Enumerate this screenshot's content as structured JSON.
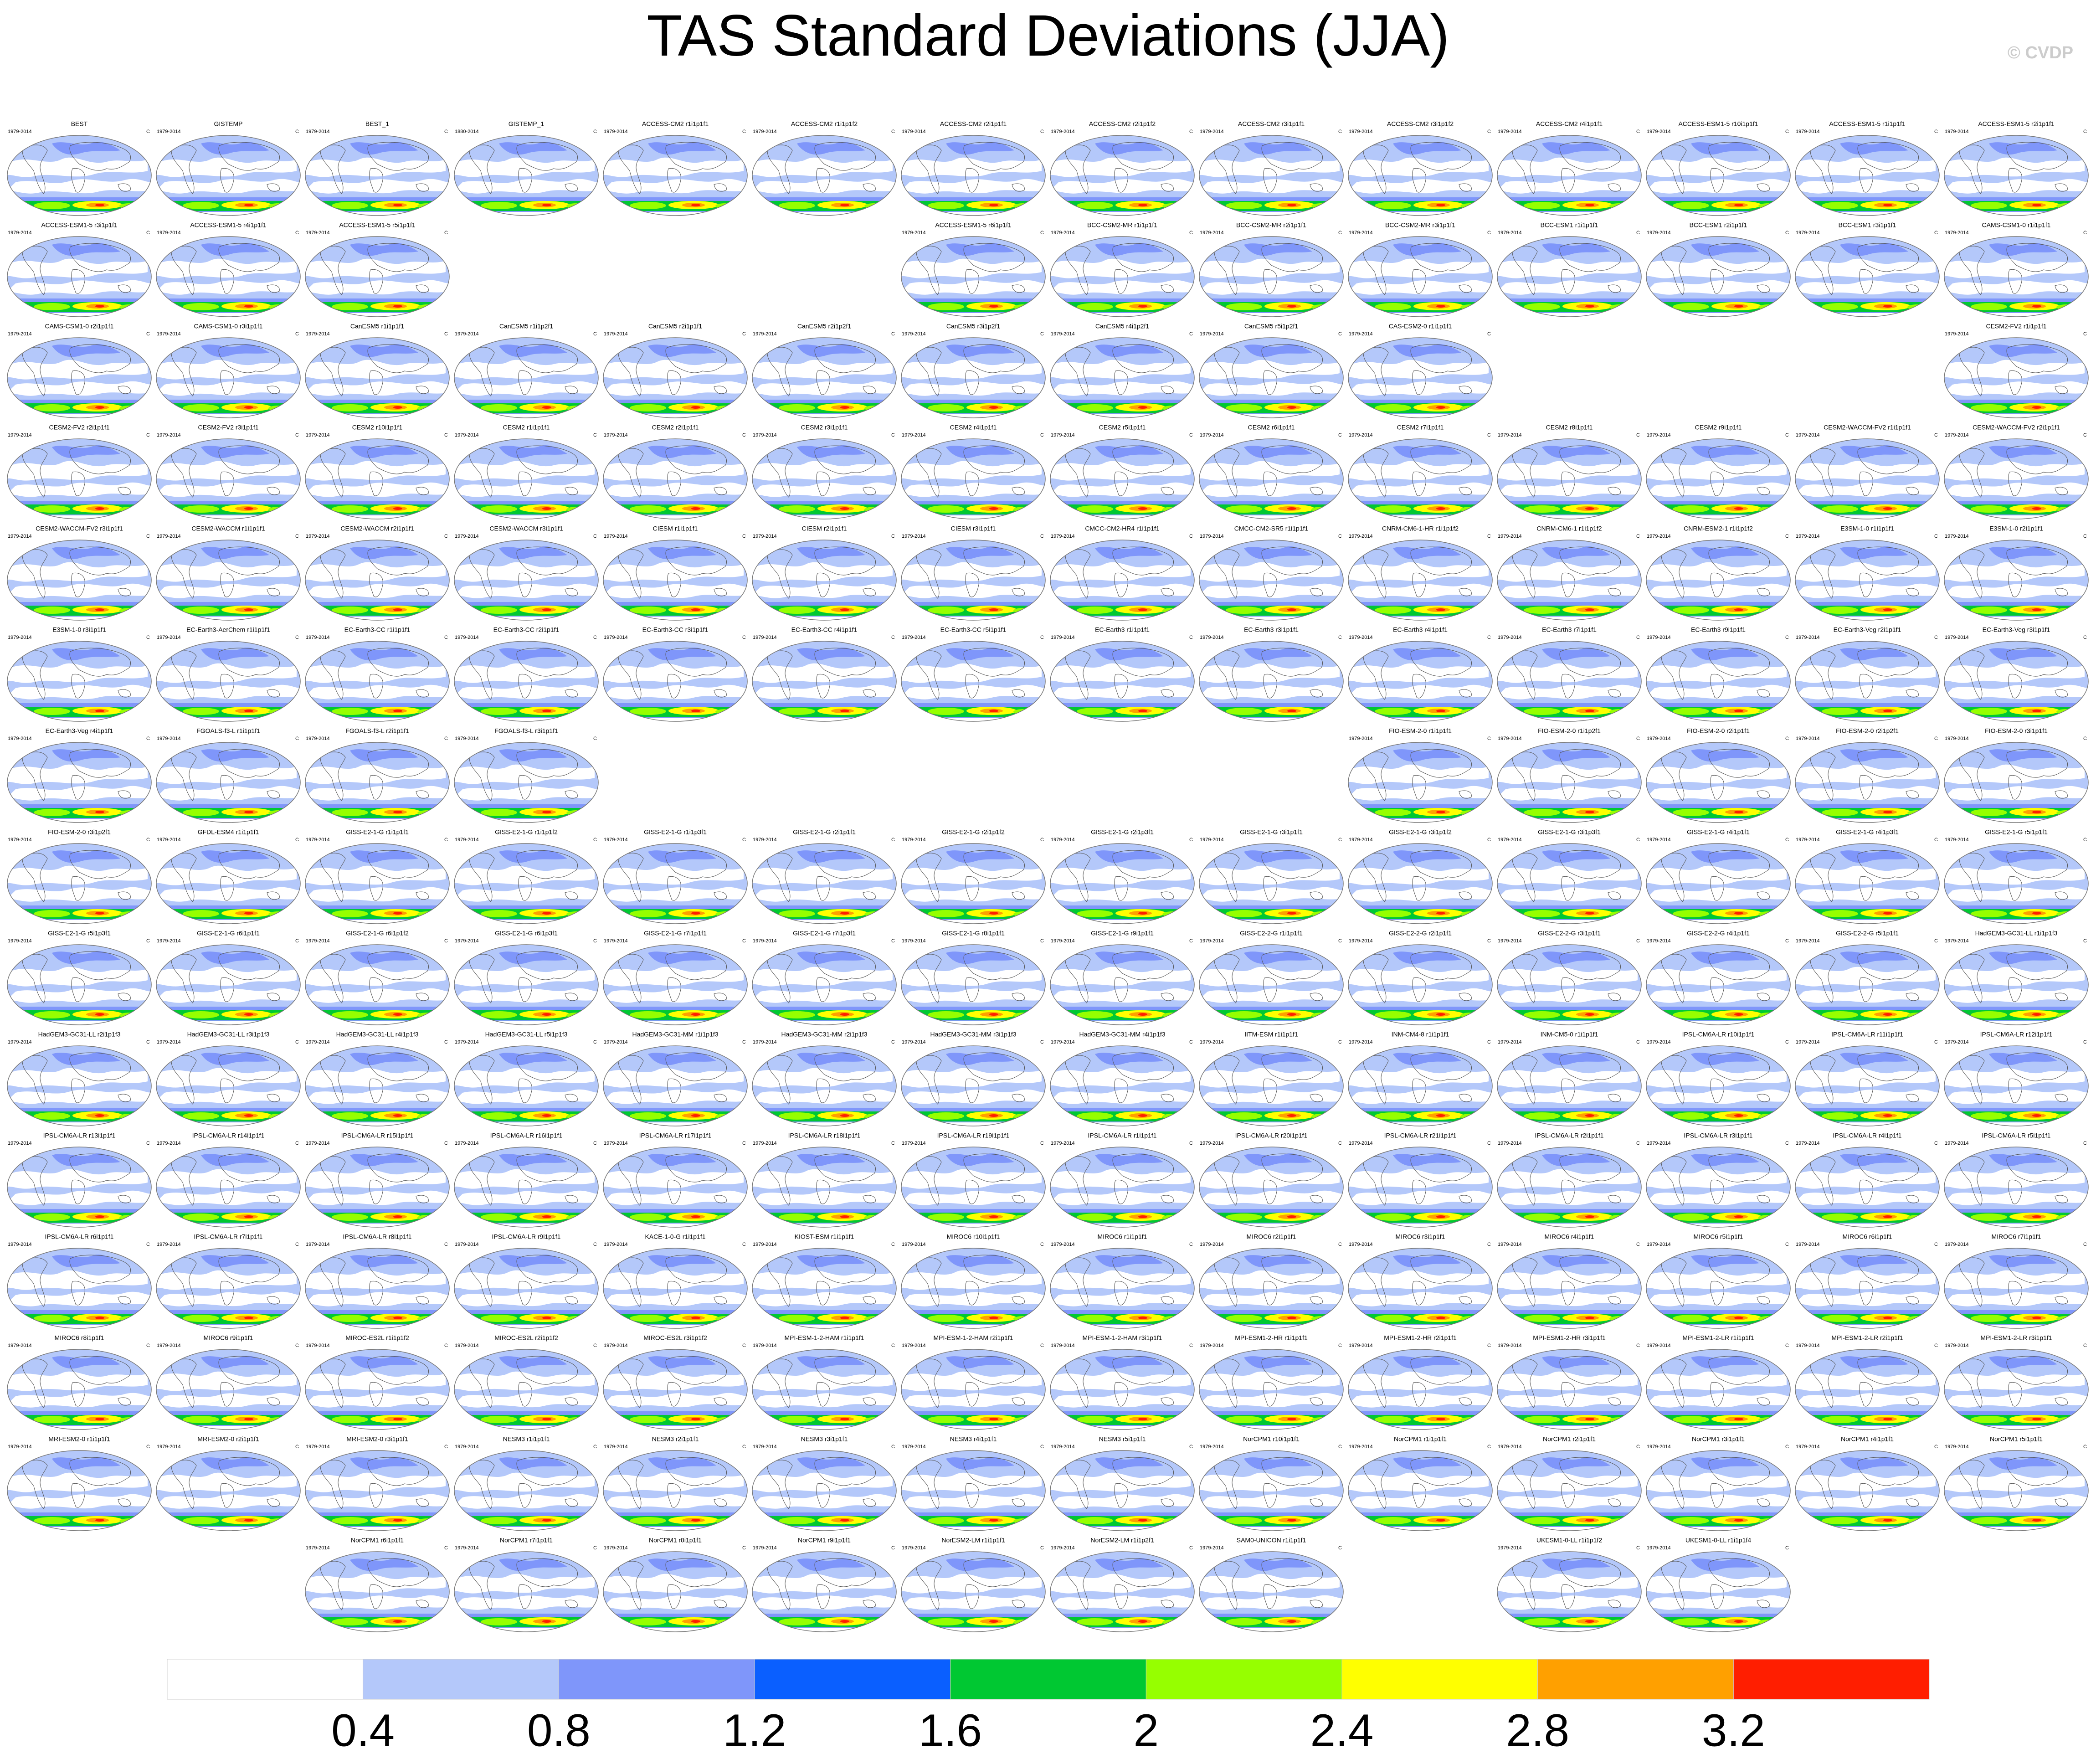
{
  "title": "TAS Standard Deviations (JJA)",
  "watermark": "© CVDP",
  "units": "C",
  "panels": [
    [
      {
        "title": "BEST",
        "period": "1979-2014"
      },
      {
        "title": "GISTEMP",
        "period": "1979-2014"
      },
      {
        "title": "BEST_1",
        "period": "1979-2014"
      },
      {
        "title": "GISTEMP_1",
        "period": "1880-2014"
      },
      {
        "title": "ACCESS-CM2 r1i1p1f1",
        "period": "1979-2014"
      },
      {
        "title": "ACCESS-CM2 r1i1p1f2",
        "period": "1979-2014"
      },
      {
        "title": "ACCESS-CM2 r2i1p1f1",
        "period": "1979-2014"
      },
      {
        "title": "ACCESS-CM2 r2i1p1f2",
        "period": "1979-2014"
      },
      {
        "title": "ACCESS-CM2 r3i1p1f1",
        "period": "1979-2014"
      },
      {
        "title": "ACCESS-CM2 r3i1p1f2",
        "period": "1979-2014"
      },
      {
        "title": "ACCESS-CM2 r4i1p1f1",
        "period": "1979-2014"
      },
      {
        "title": "ACCESS-ESM1-5 r10i1p1f1",
        "period": "1979-2014"
      },
      {
        "title": "ACCESS-ESM1-5 r1i1p1f1",
        "period": "1979-2014"
      },
      {
        "title": "ACCESS-ESM1-5 r2i1p1f1",
        "period": "1979-2014"
      }
    ],
    [
      {
        "title": "ACCESS-ESM1-5 r3i1p1f1",
        "period": "1979-2014"
      },
      {
        "title": "ACCESS-ESM1-5 r4i1p1f1",
        "period": "1979-2014"
      },
      {
        "title": "ACCESS-ESM1-5 r5i1p1f1",
        "period": "1979-2014"
      },
      null,
      null,
      null,
      {
        "title": "ACCESS-ESM1-5 r6i1p1f1",
        "period": "1979-2014"
      },
      {
        "title": "BCC-CSM2-MR r1i1p1f1",
        "period": "1979-2014"
      },
      {
        "title": "BCC-CSM2-MR r2i1p1f1",
        "period": "1979-2014"
      },
      {
        "title": "BCC-CSM2-MR r3i1p1f1",
        "period": "1979-2014"
      },
      {
        "title": "BCC-ESM1 r1i1p1f1",
        "period": "1979-2014"
      },
      {
        "title": "BCC-ESM1 r2i1p1f1",
        "period": "1979-2014"
      },
      {
        "title": "BCC-ESM1 r3i1p1f1",
        "period": "1979-2014"
      },
      {
        "title": "CAMS-CSM1-0 r1i1p1f1",
        "period": "1979-2014"
      }
    ],
    [
      {
        "title": "CAMS-CSM1-0 r2i1p1f1",
        "period": "1979-2014"
      },
      {
        "title": "CAMS-CSM1-0 r3i1p1f1",
        "period": "1979-2014"
      },
      {
        "title": "CanESM5 r1i1p1f1",
        "period": "1979-2014"
      },
      {
        "title": "CanESM5 r1i1p2f1",
        "period": "1979-2014"
      },
      {
        "title": "CanESM5 r2i1p1f1",
        "period": "1979-2014"
      },
      {
        "title": "CanESM5 r2i1p2f1",
        "period": "1979-2014"
      },
      {
        "title": "CanESM5 r3i1p2f1",
        "period": "1979-2014"
      },
      {
        "title": "CanESM5 r4i1p2f1",
        "period": "1979-2014"
      },
      {
        "title": "CanESM5 r5i1p2f1",
        "period": "1979-2014"
      },
      {
        "title": "CAS-ESM2-0 r1i1p1f1",
        "period": "1979-2014"
      },
      null,
      null,
      null,
      {
        "title": "CESM2-FV2 r1i1p1f1",
        "period": "1979-2014"
      }
    ],
    [
      {
        "title": "CESM2-FV2 r2i1p1f1",
        "period": "1979-2014"
      },
      {
        "title": "CESM2-FV2 r3i1p1f1",
        "period": "1979-2014"
      },
      {
        "title": "CESM2 r10i1p1f1",
        "period": "1979-2014"
      },
      {
        "title": "CESM2 r1i1p1f1",
        "period": "1979-2014"
      },
      {
        "title": "CESM2 r2i1p1f1",
        "period": "1979-2014"
      },
      {
        "title": "CESM2 r3i1p1f1",
        "period": "1979-2014"
      },
      {
        "title": "CESM2 r4i1p1f1",
        "period": "1979-2014"
      },
      {
        "title": "CESM2 r5i1p1f1",
        "period": "1979-2014"
      },
      {
        "title": "CESM2 r6i1p1f1",
        "period": "1979-2014"
      },
      {
        "title": "CESM2 r7i1p1f1",
        "period": "1979-2014"
      },
      {
        "title": "CESM2 r8i1p1f1",
        "period": "1979-2014"
      },
      {
        "title": "CESM2 r9i1p1f1",
        "period": "1979-2014"
      },
      {
        "title": "CESM2-WACCM-FV2 r1i1p1f1",
        "period": "1979-2014"
      },
      {
        "title": "CESM2-WACCM-FV2 r2i1p1f1",
        "period": "1979-2014"
      }
    ],
    [
      {
        "title": "CESM2-WACCM-FV2 r3i1p1f1",
        "period": "1979-2014"
      },
      {
        "title": "CESM2-WACCM r1i1p1f1",
        "period": "1979-2014"
      },
      {
        "title": "CESM2-WACCM r2i1p1f1",
        "period": "1979-2014"
      },
      {
        "title": "CESM2-WACCM r3i1p1f1",
        "period": "1979-2014"
      },
      {
        "title": "CIESM r1i1p1f1",
        "period": "1979-2014"
      },
      {
        "title": "CIESM r2i1p1f1",
        "period": "1979-2014"
      },
      {
        "title": "CIESM r3i1p1f1",
        "period": "1979-2014"
      },
      {
        "title": "CMCC-CM2-HR4 r1i1p1f1",
        "period": "1979-2014"
      },
      {
        "title": "CMCC-CM2-SR5 r1i1p1f1",
        "period": "1979-2014"
      },
      {
        "title": "CNRM-CM6-1-HR r1i1p1f2",
        "period": "1979-2014"
      },
      {
        "title": "CNRM-CM6-1 r1i1p1f2",
        "period": "1979-2014"
      },
      {
        "title": "CNRM-ESM2-1 r1i1p1f2",
        "period": "1979-2014"
      },
      {
        "title": "E3SM-1-0 r1i1p1f1",
        "period": "1979-2014"
      },
      {
        "title": "E3SM-1-0 r2i1p1f1",
        "period": "1979-2014"
      }
    ],
    [
      {
        "title": "E3SM-1-0 r3i1p1f1",
        "period": "1979-2014"
      },
      {
        "title": "EC-Earth3-AerChem r1i1p1f1",
        "period": "1979-2014"
      },
      {
        "title": "EC-Earth3-CC r1i1p1f1",
        "period": "1979-2014"
      },
      {
        "title": "EC-Earth3-CC r2i1p1f1",
        "period": "1979-2014"
      },
      {
        "title": "EC-Earth3-CC r3i1p1f1",
        "period": "1979-2014"
      },
      {
        "title": "EC-Earth3-CC r4i1p1f1",
        "period": "1979-2014"
      },
      {
        "title": "EC-Earth3-CC r5i1p1f1",
        "period": "1979-2014"
      },
      {
        "title": "EC-Earth3 r1i1p1f1",
        "period": "1979-2014"
      },
      {
        "title": "EC-Earth3 r3i1p1f1",
        "period": "1979-2014"
      },
      {
        "title": "EC-Earth3 r4i1p1f1",
        "period": "1979-2014"
      },
      {
        "title": "EC-Earth3 r7i1p1f1",
        "period": "1979-2014"
      },
      {
        "title": "EC-Earth3 r9i1p1f1",
        "period": "1979-2014"
      },
      {
        "title": "EC-Earth3-Veg r2i1p1f1",
        "period": "1979-2014"
      },
      {
        "title": "EC-Earth3-Veg r3i1p1f1",
        "period": "1979-2014"
      }
    ],
    [
      {
        "title": "EC-Earth3-Veg r4i1p1f1",
        "period": "1979-2014"
      },
      {
        "title": "FGOALS-f3-L r1i1p1f1",
        "period": "1979-2014"
      },
      {
        "title": "FGOALS-f3-L r2i1p1f1",
        "period": "1979-2014"
      },
      {
        "title": "FGOALS-f3-L r3i1p1f1",
        "period": "1979-2014"
      },
      null,
      null,
      null,
      null,
      null,
      {
        "title": "FIO-ESM-2-0 r1i1p1f1",
        "period": "1979-2014"
      },
      {
        "title": "FIO-ESM-2-0 r1i1p2f1",
        "period": "1979-2014"
      },
      {
        "title": "FIO-ESM-2-0 r2i1p1f1",
        "period": "1979-2014"
      },
      {
        "title": "FIO-ESM-2-0 r2i1p2f1",
        "period": "1979-2014"
      },
      {
        "title": "FIO-ESM-2-0 r3i1p1f1",
        "period": "1979-2014"
      }
    ],
    [
      {
        "title": "FIO-ESM-2-0 r3i1p2f1",
        "period": "1979-2014"
      },
      {
        "title": "GFDL-ESM4 r1i1p1f1",
        "period": "1979-2014"
      },
      {
        "title": "GISS-E2-1-G r1i1p1f1",
        "period": "1979-2014"
      },
      {
        "title": "GISS-E2-1-G r1i1p1f2",
        "period": "1979-2014"
      },
      {
        "title": "GISS-E2-1-G r1i1p3f1",
        "period": "1979-2014"
      },
      {
        "title": "GISS-E2-1-G r2i1p1f1",
        "period": "1979-2014"
      },
      {
        "title": "GISS-E2-1-G r2i1p1f2",
        "period": "1979-2014"
      },
      {
        "title": "GISS-E2-1-G r2i1p3f1",
        "period": "1979-2014"
      },
      {
        "title": "GISS-E2-1-G r3i1p1f1",
        "period": "1979-2014"
      },
      {
        "title": "GISS-E2-1-G r3i1p1f2",
        "period": "1979-2014"
      },
      {
        "title": "GISS-E2-1-G r3i1p3f1",
        "period": "1979-2014"
      },
      {
        "title": "GISS-E2-1-G r4i1p1f1",
        "period": "1979-2014"
      },
      {
        "title": "GISS-E2-1-G r4i1p3f1",
        "period": "1979-2014"
      },
      {
        "title": "GISS-E2-1-G r5i1p1f1",
        "period": "1979-2014"
      }
    ],
    [
      {
        "title": "GISS-E2-1-G r5i1p3f1",
        "period": "1979-2014"
      },
      {
        "title": "GISS-E2-1-G r6i1p1f1",
        "period": "1979-2014"
      },
      {
        "title": "GISS-E2-1-G r6i1p1f2",
        "period": "1979-2014"
      },
      {
        "title": "GISS-E2-1-G r6i1p3f1",
        "period": "1979-2014"
      },
      {
        "title": "GISS-E2-1-G r7i1p1f1",
        "period": "1979-2014"
      },
      {
        "title": "GISS-E2-1-G r7i1p3f1",
        "period": "1979-2014"
      },
      {
        "title": "GISS-E2-1-G r8i1p1f1",
        "period": "1979-2014"
      },
      {
        "title": "GISS-E2-1-G r9i1p1f1",
        "period": "1979-2014"
      },
      {
        "title": "GISS-E2-2-G r1i1p1f1",
        "period": "1979-2014"
      },
      {
        "title": "GISS-E2-2-G r2i1p1f1",
        "period": "1979-2014"
      },
      {
        "title": "GISS-E2-2-G r3i1p1f1",
        "period": "1979-2014"
      },
      {
        "title": "GISS-E2-2-G r4i1p1f1",
        "period": "1979-2014"
      },
      {
        "title": "GISS-E2-2-G r5i1p1f1",
        "period": "1979-2014"
      },
      {
        "title": "HadGEM3-GC31-LL r1i1p1f3",
        "period": "1979-2014"
      }
    ],
    [
      {
        "title": "HadGEM3-GC31-LL r2i1p1f3",
        "period": "1979-2014"
      },
      {
        "title": "HadGEM3-GC31-LL r3i1p1f3",
        "period": "1979-2014"
      },
      {
        "title": "HadGEM3-GC31-LL r4i1p1f3",
        "period": "1979-2014"
      },
      {
        "title": "HadGEM3-GC31-LL r5i1p1f3",
        "period": "1979-2014"
      },
      {
        "title": "HadGEM3-GC31-MM r1i1p1f3",
        "period": "1979-2014"
      },
      {
        "title": "HadGEM3-GC31-MM r2i1p1f3",
        "period": "1979-2014"
      },
      {
        "title": "HadGEM3-GC31-MM r3i1p1f3",
        "period": "1979-2014"
      },
      {
        "title": "HadGEM3-GC31-MM r4i1p1f3",
        "period": "1979-2014"
      },
      {
        "title": "IITM-ESM r1i1p1f1",
        "period": "1979-2014"
      },
      {
        "title": "INM-CM4-8 r1i1p1f1",
        "period": "1979-2014"
      },
      {
        "title": "INM-CM5-0 r1i1p1f1",
        "period": "1979-2014"
      },
      {
        "title": "IPSL-CM6A-LR r10i1p1f1",
        "period": "1979-2014"
      },
      {
        "title": "IPSL-CM6A-LR r11i1p1f1",
        "period": "1979-2014"
      },
      {
        "title": "IPSL-CM6A-LR r12i1p1f1",
        "period": "1979-2014"
      }
    ],
    [
      {
        "title": "IPSL-CM6A-LR r13i1p1f1",
        "period": "1979-2014"
      },
      {
        "title": "IPSL-CM6A-LR r14i1p1f1",
        "period": "1979-2014"
      },
      {
        "title": "IPSL-CM6A-LR r15i1p1f1",
        "period": "1979-2014"
      },
      {
        "title": "IPSL-CM6A-LR r16i1p1f1",
        "period": "1979-2014"
      },
      {
        "title": "IPSL-CM6A-LR r17i1p1f1",
        "period": "1979-2014"
      },
      {
        "title": "IPSL-CM6A-LR r18i1p1f1",
        "period": "1979-2014"
      },
      {
        "title": "IPSL-CM6A-LR r19i1p1f1",
        "period": "1979-2014"
      },
      {
        "title": "IPSL-CM6A-LR r1i1p1f1",
        "period": "1979-2014"
      },
      {
        "title": "IPSL-CM6A-LR r20i1p1f1",
        "period": "1979-2014"
      },
      {
        "title": "IPSL-CM6A-LR r21i1p1f1",
        "period": "1979-2014"
      },
      {
        "title": "IPSL-CM6A-LR r2i1p1f1",
        "period": "1979-2014"
      },
      {
        "title": "IPSL-CM6A-LR r3i1p1f1",
        "period": "1979-2014"
      },
      {
        "title": "IPSL-CM6A-LR r4i1p1f1",
        "period": "1979-2014"
      },
      {
        "title": "IPSL-CM6A-LR r5i1p1f1",
        "period": "1979-2014"
      }
    ],
    [
      {
        "title": "IPSL-CM6A-LR r6i1p1f1",
        "period": "1979-2014"
      },
      {
        "title": "IPSL-CM6A-LR r7i1p1f1",
        "period": "1979-2014"
      },
      {
        "title": "IPSL-CM6A-LR r8i1p1f1",
        "period": "1979-2014"
      },
      {
        "title": "IPSL-CM6A-LR r9i1p1f1",
        "period": "1979-2014"
      },
      {
        "title": "KACE-1-0-G r1i1p1f1",
        "period": "1979-2014"
      },
      {
        "title": "KIOST-ESM r1i1p1f1",
        "period": "1979-2014"
      },
      {
        "title": "MIROC6 r10i1p1f1",
        "period": "1979-2014"
      },
      {
        "title": "MIROC6 r1i1p1f1",
        "period": "1979-2014"
      },
      {
        "title": "MIROC6 r2i1p1f1",
        "period": "1979-2014"
      },
      {
        "title": "MIROC6 r3i1p1f1",
        "period": "1979-2014"
      },
      {
        "title": "MIROC6 r4i1p1f1",
        "period": "1979-2014"
      },
      {
        "title": "MIROC6 r5i1p1f1",
        "period": "1979-2014"
      },
      {
        "title": "MIROC6 r6i1p1f1",
        "period": "1979-2014"
      },
      {
        "title": "MIROC6 r7i1p1f1",
        "period": "1979-2014"
      }
    ],
    [
      {
        "title": "MIROC6 r8i1p1f1",
        "period": "1979-2014"
      },
      {
        "title": "MIROC6 r9i1p1f1",
        "period": "1979-2014"
      },
      {
        "title": "MIROC-ES2L r1i1p1f2",
        "period": "1979-2014"
      },
      {
        "title": "MIROC-ES2L r2i1p1f2",
        "period": "1979-2014"
      },
      {
        "title": "MIROC-ES2L r3i1p1f2",
        "period": "1979-2014"
      },
      {
        "title": "MPI-ESM-1-2-HAM r1i1p1f1",
        "period": "1979-2014"
      },
      {
        "title": "MPI-ESM-1-2-HAM r2i1p1f1",
        "period": "1979-2014"
      },
      {
        "title": "MPI-ESM-1-2-HAM r3i1p1f1",
        "period": "1979-2014"
      },
      {
        "title": "MPI-ESM1-2-HR r1i1p1f1",
        "period": "1979-2014"
      },
      {
        "title": "MPI-ESM1-2-HR r2i1p1f1",
        "period": "1979-2014"
      },
      {
        "title": "MPI-ESM1-2-HR r3i1p1f1",
        "period": "1979-2014"
      },
      {
        "title": "MPI-ESM1-2-LR r1i1p1f1",
        "period": "1979-2014"
      },
      {
        "title": "MPI-ESM1-2-LR r2i1p1f1",
        "period": "1979-2014"
      },
      {
        "title": "MPI-ESM1-2-LR r3i1p1f1",
        "period": "1979-2014"
      }
    ],
    [
      {
        "title": "MRI-ESM2-0 r1i1p1f1",
        "period": "1979-2014"
      },
      {
        "title": "MRI-ESM2-0 r2i1p1f1",
        "period": "1979-2014"
      },
      {
        "title": "MRI-ESM2-0 r3i1p1f1",
        "period": "1979-2014"
      },
      {
        "title": "NESM3 r1i1p1f1",
        "period": "1979-2014"
      },
      {
        "title": "NESM3 r2i1p1f1",
        "period": "1979-2014"
      },
      {
        "title": "NESM3 r3i1p1f1",
        "period": "1979-2014"
      },
      {
        "title": "NESM3 r4i1p1f1",
        "period": "1979-2014"
      },
      {
        "title": "NESM3 r5i1p1f1",
        "period": "1979-2014"
      },
      {
        "title": "NorCPM1 r10i1p1f1",
        "period": "1979-2014"
      },
      {
        "title": "NorCPM1 r1i1p1f1",
        "period": "1979-2014"
      },
      {
        "title": "NorCPM1 r2i1p1f1",
        "period": "1979-2014"
      },
      {
        "title": "NorCPM1 r3i1p1f1",
        "period": "1979-2014"
      },
      {
        "title": "NorCPM1 r4i1p1f1",
        "period": "1979-2014"
      },
      {
        "title": "NorCPM1 r5i1p1f1",
        "period": "1979-2014"
      }
    ],
    [
      null,
      null,
      {
        "title": "NorCPM1 r6i1p1f1",
        "period": "1979-2014"
      },
      {
        "title": "NorCPM1 r7i1p1f1",
        "period": "1979-2014"
      },
      {
        "title": "NorCPM1 r8i1p1f1",
        "period": "1979-2014"
      },
      {
        "title": "NorCPM1 r9i1p1f1",
        "period": "1979-2014"
      },
      {
        "title": "NorESM2-LM r1i1p1f1",
        "period": "1979-2014"
      },
      {
        "title": "NorESM2-LM r1i1p2f1",
        "period": "1979-2014"
      },
      {
        "title": "SAM0-UNICON r1i1p1f1",
        "period": "1979-2014"
      },
      null,
      {
        "title": "UKESM1-0-LL r1i1p1f2",
        "period": "1979-2014"
      },
      {
        "title": "UKESM1-0-LL r1i1p1f4",
        "period": "1979-2014"
      },
      null,
      null
    ]
  ],
  "colorbar": {
    "colors": [
      "#ffffff",
      "#b4c8fa",
      "#7f96fa",
      "#0a5fff",
      "#00c832",
      "#96ff00",
      "#ffff00",
      "#ffa000",
      "#ff1e00"
    ],
    "labels": [
      0.4,
      0.8,
      1.2,
      1.6,
      2,
      2.4,
      2.8,
      3.2
    ]
  }
}
